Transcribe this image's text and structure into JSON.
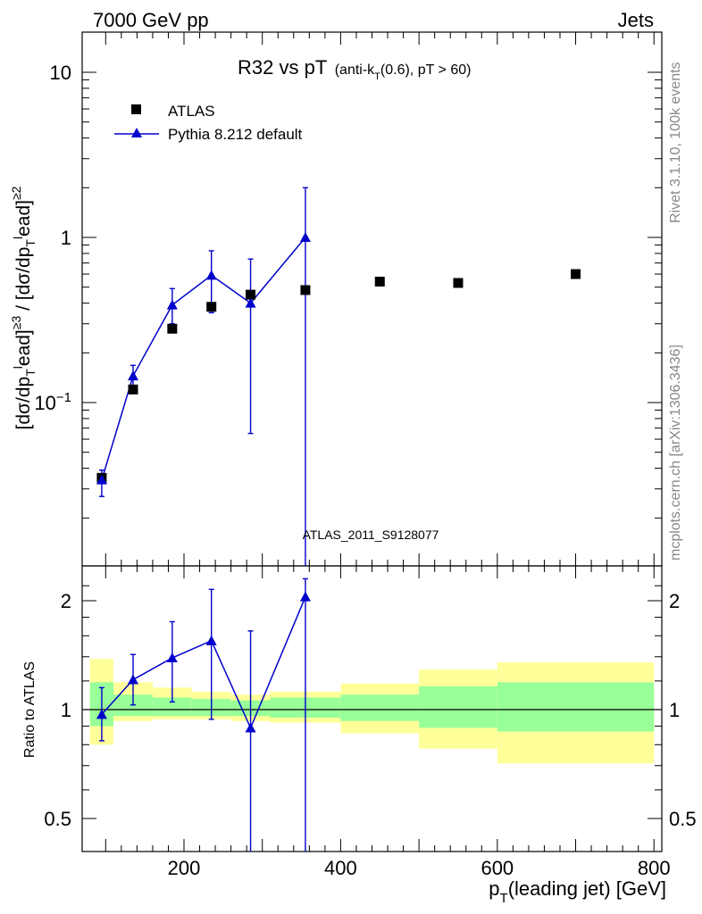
{
  "header": {
    "left": "7000 GeV pp",
    "right": "Jets"
  },
  "plot_title": {
    "main": "R32 vs pT",
    "sub_pre": "(anti-k",
    "sub_sub": "T",
    "sub_post": "(0.6), pT > 60)"
  },
  "side_text": {
    "rivet": "Rivet 3.1.10,  100k events",
    "mcplots": "mcplots.cern.ch [arXiv:1306.3436]"
  },
  "watermark": "ATLAS_2011_S9128077",
  "legend": {
    "data_label": "ATLAS",
    "mc_label": "Pythia 8.212 default"
  },
  "ylabel_top": {
    "p1": "[dσ/dp",
    "p2": "ead]",
    "p3": " / [dσ/dp",
    "p4": "ead]",
    "sup1": "≥3",
    "sup2": "≥2",
    "sub": "T",
    "super_l": "l"
  },
  "ylabel_bottom": "Ratio to ATLAS",
  "xlabel": {
    "pre": "p",
    "sub": "T",
    "post": "(leading jet) [GeV]"
  },
  "colors": {
    "mc": "#0000cc",
    "data": "#000000",
    "band_outer": "#ffff99",
    "band_inner": "#99ff99"
  },
  "chart_data": [
    {
      "type": "scatter",
      "title": "R32 vs pT (anti-kT(0.6), pT > 60)",
      "xlabel": "pT(leading jet) [GeV]",
      "ylabel": "[dσ/dpTlead]≥3 / [dσ/dpTlead]≥2",
      "xlim": [
        70,
        810
      ],
      "ylim": [
        0.01,
        20
      ],
      "yscale": "log",
      "xticks": [
        200,
        400,
        600,
        800
      ],
      "yticks": [
        "10^-1",
        "1",
        "10"
      ],
      "legend_position": "top-left",
      "series": [
        {
          "name": "ATLAS",
          "marker": "square",
          "x": [
            95,
            135,
            185,
            235,
            285,
            355,
            450,
            550,
            700
          ],
          "y": [
            0.035,
            0.12,
            0.28,
            0.38,
            0.45,
            0.48,
            0.54,
            0.53,
            0.6
          ]
        },
        {
          "name": "Pythia 8.212 default",
          "marker": "triangle",
          "x": [
            95,
            135,
            185,
            235,
            285,
            355
          ],
          "y": [
            0.034,
            0.145,
            0.39,
            0.59,
            0.4,
            1.0
          ],
          "yerr_low": [
            0.027,
            0.122,
            0.3,
            0.35,
            0.065,
            0.0001
          ],
          "yerr_high": [
            0.039,
            0.168,
            0.49,
            0.83,
            0.74,
            2.0
          ]
        }
      ]
    },
    {
      "type": "line",
      "ylabel": "Ratio to ATLAS",
      "xlim": [
        70,
        810
      ],
      "ylim": [
        0.4,
        2.3
      ],
      "yscale": "log",
      "yticks": [
        0.5,
        1,
        2
      ],
      "bands": {
        "edges": [
          80,
          110,
          160,
          210,
          260,
          310,
          400,
          500,
          600,
          800
        ],
        "outer_low": [
          0.8,
          0.93,
          0.94,
          0.94,
          0.93,
          0.92,
          0.86,
          0.78,
          0.71
        ],
        "outer_high": [
          1.38,
          1.19,
          1.15,
          1.12,
          1.1,
          1.12,
          1.18,
          1.29,
          1.35
        ],
        "inner_low": [
          0.9,
          0.96,
          0.96,
          0.96,
          0.96,
          0.95,
          0.93,
          0.89,
          0.87
        ],
        "inner_high": [
          1.19,
          1.1,
          1.08,
          1.07,
          1.06,
          1.08,
          1.1,
          1.16,
          1.19
        ]
      },
      "series": [
        {
          "name": "Pythia 8.212 default",
          "x": [
            95,
            135,
            185,
            235,
            285,
            355
          ],
          "y": [
            0.97,
            1.21,
            1.39,
            1.55,
            0.89,
            2.05
          ],
          "yerr_low": [
            0.82,
            1.03,
            1.05,
            0.94,
            0.3,
            0.3
          ],
          "yerr_high": [
            1.15,
            1.42,
            1.75,
            2.15,
            1.65,
            2.3
          ]
        }
      ]
    }
  ]
}
